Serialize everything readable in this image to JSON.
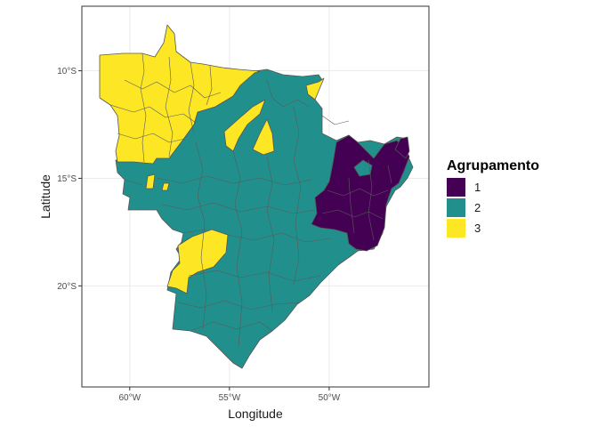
{
  "plot": {
    "xlabel": "Longitude",
    "ylabel": "Latitude",
    "x_ticks": [
      {
        "value": -60,
        "label": "60°W"
      },
      {
        "value": -55,
        "label": "55°W"
      },
      {
        "value": -50,
        "label": "50°W"
      }
    ],
    "y_ticks": [
      {
        "value": -10,
        "label": "10°S"
      },
      {
        "value": -15,
        "label": "15°S"
      },
      {
        "value": -20,
        "label": "20°S"
      }
    ],
    "xlim": [
      -62.4,
      -45.0
    ],
    "ylim": [
      -24.7,
      -7.0
    ],
    "grid": true,
    "legend_position": "right"
  },
  "legend": {
    "title": "Agrupamento",
    "items": [
      {
        "label": "1",
        "color": "#440154"
      },
      {
        "label": "2",
        "color": "#21908C"
      },
      {
        "label": "3",
        "color": "#FDE725"
      }
    ]
  },
  "map": {
    "region_border_color": "#555555",
    "panel_border_color": "#333333",
    "grid_color": "#ebebeb"
  }
}
